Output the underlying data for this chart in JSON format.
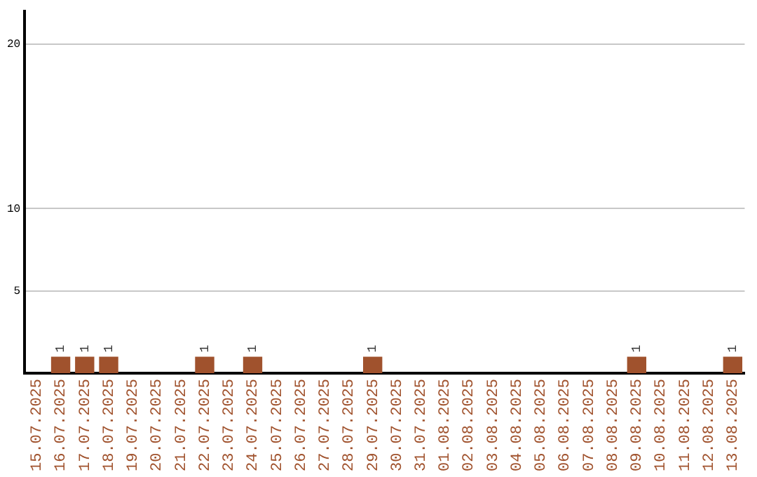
{
  "chart_data": {
    "type": "bar",
    "categories": [
      "15.07.2025",
      "16.07.2025",
      "17.07.2025",
      "18.07.2025",
      "19.07.2025",
      "20.07.2025",
      "21.07.2025",
      "22.07.2025",
      "23.07.2025",
      "24.07.2025",
      "25.07.2025",
      "26.07.2025",
      "27.07.2025",
      "28.07.2025",
      "29.07.2025",
      "30.07.2025",
      "31.07.2025",
      "01.08.2025",
      "02.08.2025",
      "03.08.2025",
      "04.08.2025",
      "05.08.2025",
      "06.08.2025",
      "07.08.2025",
      "08.08.2025",
      "09.08.2025",
      "10.08.2025",
      "11.08.2025",
      "12.08.2025",
      "13.08.2025"
    ],
    "values": [
      null,
      1,
      1,
      1,
      null,
      null,
      null,
      1,
      null,
      1,
      null,
      null,
      null,
      null,
      1,
      null,
      null,
      null,
      null,
      null,
      null,
      null,
      null,
      null,
      null,
      1,
      null,
      null,
      null,
      1
    ],
    "color": "#a0522d",
    "ylim": [
      0,
      22
    ],
    "yticks": [
      5,
      10,
      20
    ],
    "grid": "y",
    "data_labels": true,
    "legend": false
  }
}
